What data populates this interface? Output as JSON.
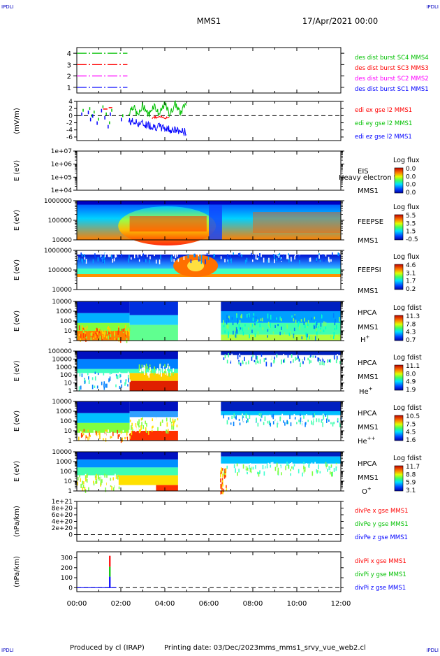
{
  "header": {
    "corner_tl": "IPDLI",
    "corner_tr": "IPDLI",
    "corner_bl": "IPDLI",
    "corner_br": "IPDLI",
    "mission": "MMS1",
    "date": "17/Apr/2021 00:00"
  },
  "footer": {
    "produced_by": "Produced by cl (IRAP)",
    "printing_date": "Printing date: 03/Dec/2023",
    "script_name": "mms_mms1_srvy_vue_web2.cl"
  },
  "colors": {
    "mms1": "#0000ff",
    "mms2": "#ff00ff",
    "mms3": "#ff0000",
    "mms4": "#00c000",
    "x": "#ff0000",
    "y": "#00c000",
    "z": "#0000ff"
  },
  "chart_data": [
    {
      "id": "burst",
      "type": "line",
      "title": "",
      "xlabel": "",
      "ylabel": "",
      "xlim": [
        0,
        12
      ],
      "ylim": [
        0.5,
        4.5
      ],
      "yticks": [
        "1",
        "2",
        "3",
        "4"
      ],
      "grid": false,
      "series": [
        {
          "name": "des dist burst SC1 MMS1",
          "color": "#0000ff",
          "y": 1,
          "x": [
            0,
            2.3
          ]
        },
        {
          "name": "des dist burst SC2 MMS2",
          "color": "#ff00ff",
          "y": 2,
          "x": [
            0,
            2.3
          ]
        },
        {
          "name": "des dist burst SC3 MMS3",
          "color": "#ff0000",
          "y": 3,
          "x": [
            0,
            2.3
          ]
        },
        {
          "name": "des dist burst SC4 MMS4",
          "color": "#00c000",
          "y": 4,
          "x": [
            0,
            2.3
          ]
        }
      ]
    },
    {
      "id": "efield",
      "type": "line",
      "ylabel": "(mV/m)",
      "xlim": [
        0,
        12
      ],
      "ylim": [
        -7,
        4
      ],
      "yticks": [
        "4",
        "2",
        "0",
        "-2",
        "-4",
        "-6"
      ],
      "legend": "right",
      "series": [
        {
          "name": "edi ex gse l2 MMS1",
          "color": "#ff0000"
        },
        {
          "name": "edi ey gse l2 MMS1",
          "color": "#00c000"
        },
        {
          "name": "edi ez gse l2 MMS1",
          "color": "#0000ff"
        }
      ]
    },
    {
      "id": "eis",
      "type": "heatmap",
      "ylabel": "E (eV)",
      "yticks": [
        "1e+07",
        "1e+06",
        "1e+05",
        "1e+04"
      ],
      "labels": [
        "EIS",
        "MMS1"
      ],
      "overlay_text": "Heavy electron to",
      "colorbar": {
        "title": "Log flux",
        "ticks": [
          "0.0",
          "0.0",
          "0.0",
          "0.0"
        ]
      }
    },
    {
      "id": "feepse",
      "type": "heatmap",
      "ylabel": "E (eV)",
      "yticks": [
        "1000000",
        "100000",
        "10000"
      ],
      "labels": [
        "FEEPSE",
        "MMS1"
      ],
      "colorbar": {
        "title": "Log flux",
        "ticks": [
          "5.5",
          "3.5",
          "1.5",
          "-0.5"
        ]
      }
    },
    {
      "id": "feepsi",
      "type": "heatmap",
      "ylabel": "E (eV)",
      "yticks": [
        "1000000",
        "100000",
        "10000"
      ],
      "labels": [
        "FEEPSI",
        "MMS1"
      ],
      "colorbar": {
        "title": "Log flux",
        "ticks": [
          "4.6",
          "3.1",
          "1.7",
          "0.2"
        ]
      }
    },
    {
      "id": "hpca_h",
      "type": "heatmap",
      "ylabel": "E (eV)",
      "yticks": [
        "10000",
        "1000",
        "100",
        "10",
        "1"
      ],
      "labels": [
        "HPCA",
        "MMS1"
      ],
      "species": "H",
      "species_charge": "+",
      "colorbar": {
        "title": "Log fdist",
        "ticks": [
          "11.3",
          "7.8",
          "4.3",
          "0.7"
        ]
      }
    },
    {
      "id": "hpca_he1",
      "type": "heatmap",
      "ylabel": "E (eV)",
      "yticks": [
        "100000",
        "10000",
        "1000",
        "100",
        "10",
        "1"
      ],
      "labels": [
        "HPCA",
        "MMS1"
      ],
      "species": "He",
      "species_charge": "+",
      "colorbar": {
        "title": "Log fdist",
        "ticks": [
          "11.1",
          "8.0",
          "4.9",
          "1.9"
        ]
      }
    },
    {
      "id": "hpca_he2",
      "type": "heatmap",
      "ylabel": "E (eV)",
      "yticks": [
        "10000",
        "1000",
        "100",
        "10",
        "1"
      ],
      "labels": [
        "HPCA",
        "MMS1"
      ],
      "species": "He",
      "species_charge": "++",
      "colorbar": {
        "title": "Log fdist",
        "ticks": [
          "10.5",
          "7.5",
          "4.5",
          "1.6"
        ]
      }
    },
    {
      "id": "hpca_o",
      "type": "heatmap",
      "ylabel": "E (eV)",
      "yticks": [
        "10000",
        "1000",
        "100",
        "10",
        "1"
      ],
      "labels": [
        "HPCA",
        "MMS1"
      ],
      "species": "O",
      "species_charge": "+",
      "colorbar": {
        "title": "Log fdist",
        "ticks": [
          "11.7",
          "8.8",
          "5.9",
          "3.1"
        ]
      }
    },
    {
      "id": "divpe",
      "type": "line",
      "ylabel": "(nPa/km)",
      "xlim": [
        0,
        12
      ],
      "ylim": [
        -2e+20,
        1e+21
      ],
      "yticks": [
        "1e+21",
        "8e+20",
        "6e+20",
        "4e+20",
        "2e+20",
        "0"
      ],
      "series": [
        {
          "name": "divPe x gse MMS1",
          "color": "#ff0000"
        },
        {
          "name": "divPe y gse MMS1",
          "color": "#00c000"
        },
        {
          "name": "divPe z gse MMS1",
          "color": "#0000ff"
        }
      ]
    },
    {
      "id": "divpi",
      "type": "line",
      "ylabel": "(nPa/km)",
      "xlim": [
        0,
        12
      ],
      "ylim": [
        -40,
        360
      ],
      "yticks": [
        "300",
        "200",
        "100",
        "0"
      ],
      "xticks": [
        "00:00",
        "02:00",
        "04:00",
        "06:00",
        "08:00",
        "10:00",
        "12:00"
      ],
      "series": [
        {
          "name": "divPi x gse MMS1",
          "color": "#ff0000",
          "spike_x": 1.5,
          "spike_y": 320
        },
        {
          "name": "divPi y gse MMS1",
          "color": "#00c000",
          "spike_x": 1.5,
          "spike_y": 210
        },
        {
          "name": "divPi z gse MMS1",
          "color": "#0000ff",
          "spike_x": 1.5,
          "spike_y": 110
        }
      ]
    }
  ]
}
